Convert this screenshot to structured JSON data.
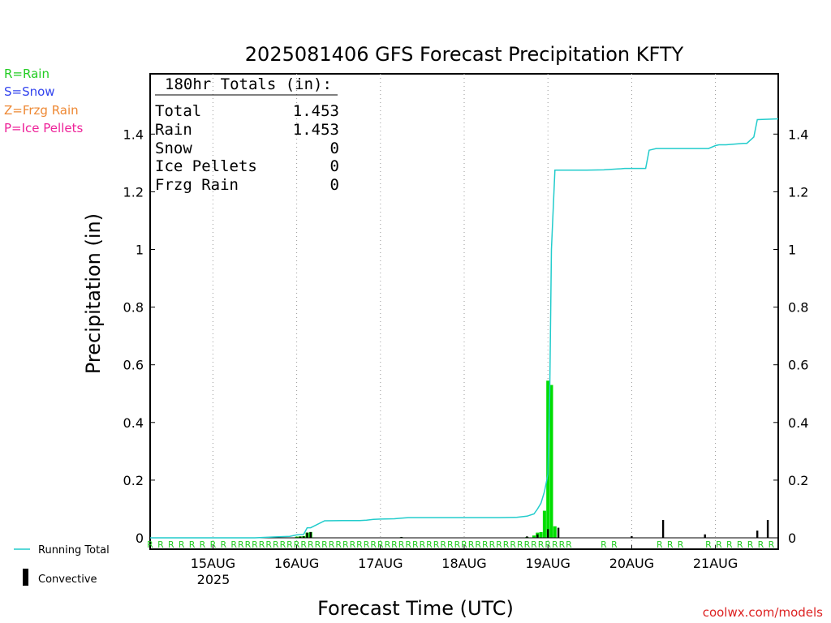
{
  "header": {
    "title": "2025081406 GFS Forecast Precipitation KFTY"
  },
  "legend": {
    "items": [
      {
        "label": "R=Rain",
        "color": "#22cc22"
      },
      {
        "label": "S=Snow",
        "color": "#3344ee"
      },
      {
        "label": "Z=Frzg Rain",
        "color": "#ee8833"
      },
      {
        "label": "P=Ice Pellets",
        "color": "#ee2299"
      }
    ],
    "running_total_label": "Running Total",
    "convective_label": "Convective"
  },
  "totals": {
    "header": "180hr Totals (in):",
    "rows": [
      {
        "label": "Total",
        "value": "1.453"
      },
      {
        "label": "Rain",
        "value": "1.453"
      },
      {
        "label": "Snow",
        "value": "0"
      },
      {
        "label": "Ice Pellets",
        "value": "0"
      },
      {
        "label": "Frzg Rain",
        "value": "0"
      }
    ]
  },
  "footer": {
    "credit": "coolwx.com/models"
  },
  "colors": {
    "running_total": "#22cccc",
    "rain_bar": "#00dd00",
    "convective": "#000000",
    "grid": "#999999"
  },
  "chart_data": {
    "type": "bar",
    "xlabel": "Forecast Time (UTC)",
    "ylabel": "Precipitation (in)",
    "ylim": [
      0,
      1.5
    ],
    "y_ticks": [
      0,
      0.2,
      0.4,
      0.6,
      0.8,
      1,
      1.2,
      1.4
    ],
    "y_tick_labels": [
      "0",
      "0.2",
      "0.4",
      "0.6",
      "0.8",
      "1",
      "1.2",
      "1.4"
    ],
    "x_tick_labels": [
      "15AUG",
      "16AUG",
      "17AUG",
      "18AUG",
      "19AUG",
      "20AUG",
      "21AUG"
    ],
    "year_label": "2025",
    "x_range_hours_after_init": [
      0,
      180
    ],
    "x_tick_hours": [
      18,
      42,
      66,
      90,
      114,
      138,
      162
    ],
    "grid": "vertical dotted at day boundaries",
    "series": [
      {
        "name": "Running Total",
        "type": "line",
        "hours": [
          0,
          30,
          36,
          40,
          42,
          44,
          45,
          46,
          50,
          55,
          60,
          62,
          64,
          66,
          70,
          72,
          74,
          80,
          85,
          90,
          95,
          100,
          105,
          108,
          110,
          111,
          112,
          113,
          114,
          114.5,
          115,
          116,
          120,
          125,
          130,
          135,
          136,
          137,
          140,
          142,
          143,
          145,
          150,
          155,
          160,
          162,
          163,
          165,
          170,
          171,
          173,
          174,
          180
        ],
        "values": [
          0,
          0,
          0.003,
          0.005,
          0.01,
          0.012,
          0.035,
          0.035,
          0.059,
          0.06,
          0.06,
          0.061,
          0.064,
          0.065,
          0.066,
          0.068,
          0.07,
          0.07,
          0.07,
          0.07,
          0.07,
          0.07,
          0.071,
          0.075,
          0.083,
          0.1,
          0.12,
          0.16,
          0.22,
          0.5,
          1.0,
          1.275,
          1.275,
          1.275,
          1.276,
          1.28,
          1.281,
          1.281,
          1.281,
          1.281,
          1.344,
          1.35,
          1.35,
          1.35,
          1.35,
          1.36,
          1.363,
          1.363,
          1.368,
          1.368,
          1.39,
          1.45,
          1.453
        ]
      },
      {
        "name": "Rain",
        "type": "bar",
        "hours": [
          36,
          42,
          43,
          44,
          45,
          46,
          54,
          60,
          66,
          72,
          78,
          84,
          90,
          96,
          102,
          108,
          110,
          111,
          112,
          113,
          114,
          115,
          116
        ],
        "values": [
          0.002,
          0.004,
          0.005,
          0.006,
          0.018,
          0.02,
          0.001,
          0.001,
          0.001,
          0.002,
          0.001,
          0.001,
          0.001,
          0.001,
          0.001,
          0.003,
          0.008,
          0.018,
          0.02,
          0.094,
          0.545,
          0.53,
          0.04
        ]
      },
      {
        "name": "Convective",
        "type": "bar",
        "hours": [
          43,
          44,
          45,
          46,
          72,
          108,
          111,
          114,
          117,
          138,
          147,
          159,
          174,
          177
        ],
        "values": [
          0.004,
          0.005,
          0.018,
          0.02,
          0.003,
          0.005,
          0.012,
          0.03,
          0.035,
          0.006,
          0.062,
          0.012,
          0.025,
          0.062
        ]
      }
    ],
    "precip_type_markers": {
      "letter": "R",
      "hours": [
        0,
        3,
        6,
        9,
        12,
        15,
        18,
        21,
        24,
        26,
        28,
        30,
        32,
        34,
        36,
        38,
        40,
        42,
        44,
        46,
        48,
        50,
        52,
        54,
        56,
        58,
        60,
        62,
        64,
        66,
        68,
        70,
        72,
        74,
        76,
        78,
        80,
        82,
        84,
        86,
        88,
        90,
        92,
        94,
        96,
        98,
        100,
        102,
        104,
        106,
        108,
        110,
        112,
        114,
        116,
        118,
        120,
        130,
        133,
        146,
        149,
        152,
        160,
        163,
        166,
        169,
        172,
        175,
        178
      ]
    }
  }
}
